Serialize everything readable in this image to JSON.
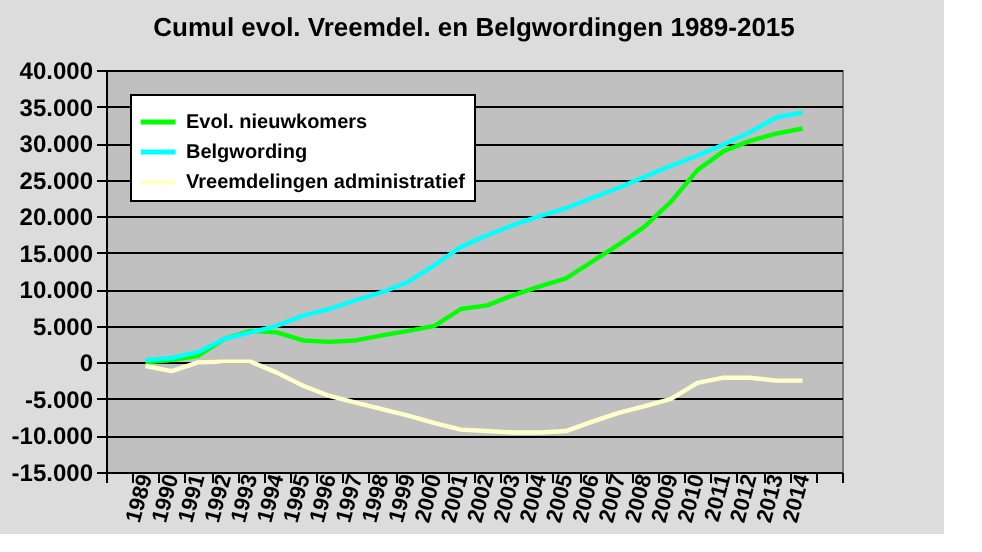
{
  "chart_data": {
    "type": "line",
    "title": "Cumul evol. Vreemdel. en Belgwordingen 1989-2015",
    "categories": [
      null,
      "1989",
      "1990",
      "1991",
      "1992",
      "1993",
      "1994",
      "1995",
      "1996",
      "1997",
      "1998",
      "1999",
      "2000",
      "2001",
      "2002",
      "2003",
      "2004",
      "2005",
      "2006",
      "2007",
      "2008",
      "2009",
      "2010",
      "2011",
      "2012",
      "2013",
      "2014",
      null
    ],
    "series": [
      {
        "name": "Evol. nieuwkomers",
        "color": "#00ff00",
        "values": [
          null,
          0,
          300,
          900,
          3200,
          4300,
          4100,
          3000,
          2800,
          3000,
          3700,
          4300,
          5000,
          7300,
          7800,
          9200,
          10400,
          11500,
          13800,
          16100,
          18600,
          22000,
          26300,
          28900,
          30300,
          31300,
          32000,
          null
        ]
      },
      {
        "name": "Belgwording",
        "color": "#00ffff",
        "values": [
          null,
          300,
          600,
          1400,
          3200,
          4100,
          5000,
          6400,
          7300,
          8500,
          9600,
          11000,
          13300,
          15800,
          17400,
          18800,
          20000,
          21100,
          22500,
          23900,
          25400,
          26900,
          28300,
          29800,
          31500,
          33500,
          34200,
          null
        ]
      },
      {
        "name": "Vreemdelingen administratief",
        "color": "#ffffcc",
        "values": [
          null,
          -500,
          -1200,
          0,
          100,
          100,
          -1400,
          -3200,
          -4600,
          -5500,
          -6400,
          -7300,
          -8300,
          -9200,
          -9400,
          -9600,
          -9600,
          -9400,
          -8100,
          -6900,
          -6000,
          -5000,
          -2800,
          -2100,
          -2100,
          -2500,
          -2500,
          null
        ]
      }
    ],
    "ylim": [
      -15000,
      40000
    ],
    "yticks": [
      {
        "value": -15000,
        "label": "-15.000"
      },
      {
        "value": -10000,
        "label": "-10.000"
      },
      {
        "value": -5000,
        "label": "-5.000"
      },
      0,
      {
        "value": 5000,
        "label": "5.000"
      },
      {
        "value": 10000,
        "label": "10.000"
      },
      {
        "value": 15000,
        "label": "15.000"
      },
      {
        "value": 20000,
        "label": "20.000"
      },
      {
        "value": 25000,
        "label": "25.000"
      },
      {
        "value": 30000,
        "label": "30.000"
      },
      {
        "value": 35000,
        "label": "35.000"
      },
      {
        "value": 40000,
        "label": "40.000"
      }
    ],
    "grid": "y",
    "legend": "top left",
    "marker": "none",
    "line_style": "solid"
  }
}
